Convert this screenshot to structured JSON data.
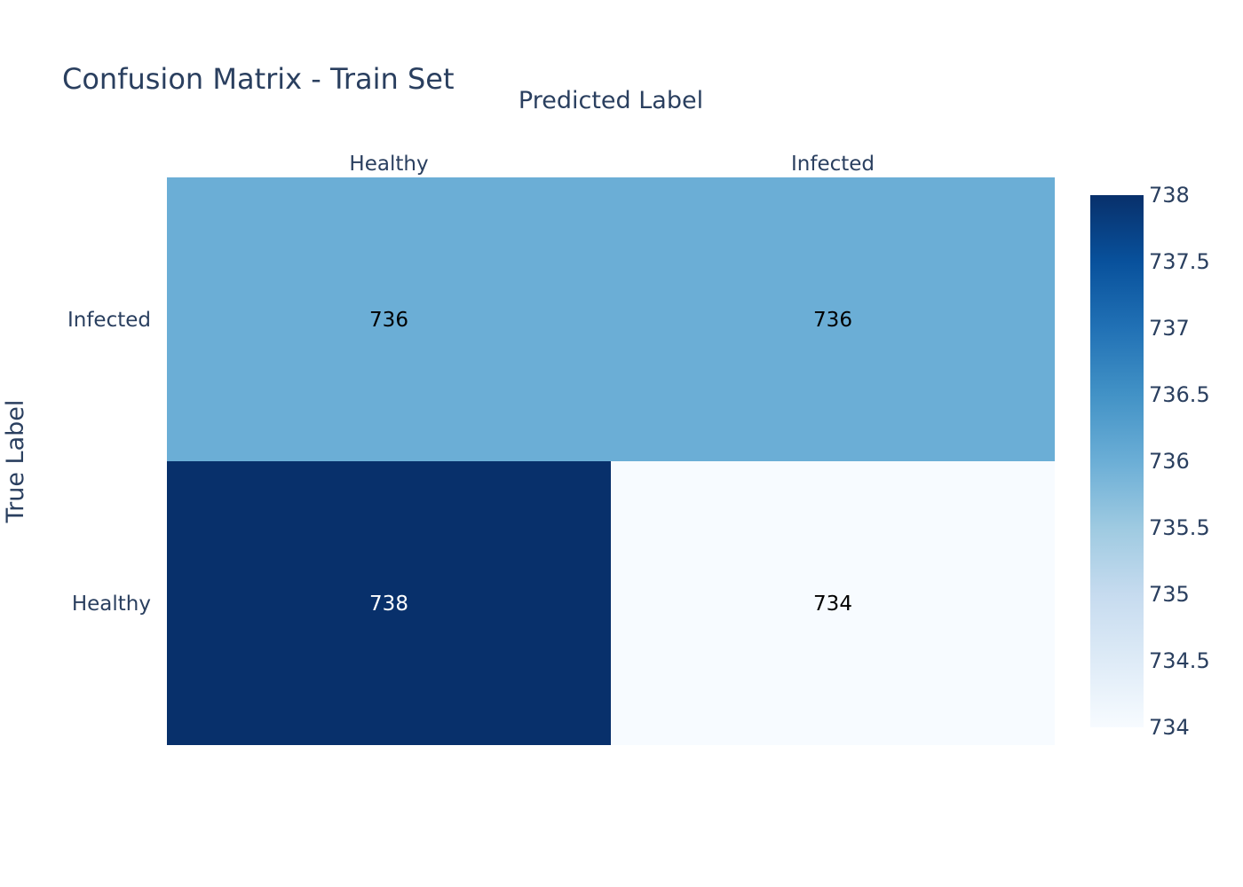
{
  "chart_data": {
    "type": "heatmap",
    "title": "Confusion Matrix - Train Set",
    "xlabel": "Predicted Label",
    "ylabel": "True Label",
    "x_categories": [
      "Healthy",
      "Infected"
    ],
    "y_categories": [
      "Healthy",
      "Infected"
    ],
    "z": [
      [
        738,
        734
      ],
      [
        736,
        736
      ]
    ],
    "colorscale": "Blues",
    "zlim": [
      734,
      738
    ],
    "colorbar_ticks": [
      "734",
      "734.5",
      "735",
      "735.5",
      "736",
      "736.5",
      "737",
      "737.5",
      "738"
    ],
    "colors": {
      "text": "#2a3f5f",
      "low": "#f7fbff",
      "high": "#08306b"
    }
  }
}
